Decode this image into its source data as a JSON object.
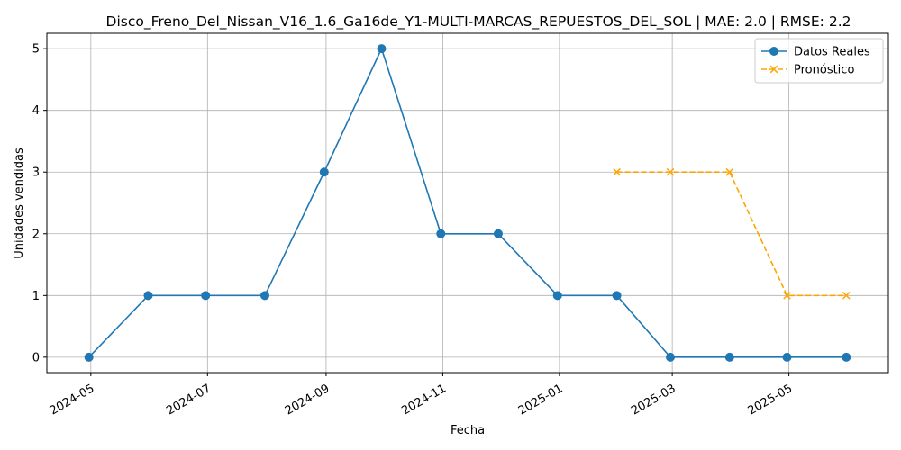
{
  "chart_data": {
    "type": "line",
    "title": "Disco_Freno_Del_Nissan_V16_1.6_Ga16de_Y1-MULTI-MARCAS_REPUESTOS_DEL_SOL | MAE: 2.0 | RMSE: 2.2",
    "xlabel": "Fecha",
    "ylabel": "Unidades vendidas",
    "xlim": [
      "2024-04-08",
      "2025-06-22"
    ],
    "ylim": [
      -0.25,
      5.25
    ],
    "grid": true,
    "legend_position": "top-right",
    "x_ticks": [
      "2024-05",
      "2024-07",
      "2024-09",
      "2024-11",
      "2025-01",
      "2025-03",
      "2025-05"
    ],
    "x_tick_dates": [
      "2024-05-01",
      "2024-07-01",
      "2024-09-01",
      "2024-11-01",
      "2025-01-01",
      "2025-03-01",
      "2025-05-01"
    ],
    "y_ticks": [
      0,
      1,
      2,
      3,
      4,
      5
    ],
    "series": [
      {
        "name": "Datos Reales",
        "color": "#1f77b4",
        "style": "solid",
        "marker": "circle",
        "x": [
          "2024-04-30",
          "2024-05-31",
          "2024-06-30",
          "2024-07-31",
          "2024-08-31",
          "2024-09-30",
          "2024-10-31",
          "2024-11-30",
          "2024-12-31",
          "2025-01-31",
          "2025-02-28",
          "2025-03-31",
          "2025-04-30",
          "2025-05-31"
        ],
        "values": [
          0,
          1,
          1,
          1,
          3,
          5,
          2,
          2,
          1,
          1,
          0,
          0,
          0,
          0
        ]
      },
      {
        "name": "Pronóstico",
        "color": "#ffa500",
        "style": "dashed",
        "marker": "x",
        "x": [
          "2025-01-31",
          "2025-02-28",
          "2025-03-31",
          "2025-04-30",
          "2025-05-31"
        ],
        "values": [
          3,
          3,
          3,
          1,
          1
        ]
      }
    ]
  }
}
